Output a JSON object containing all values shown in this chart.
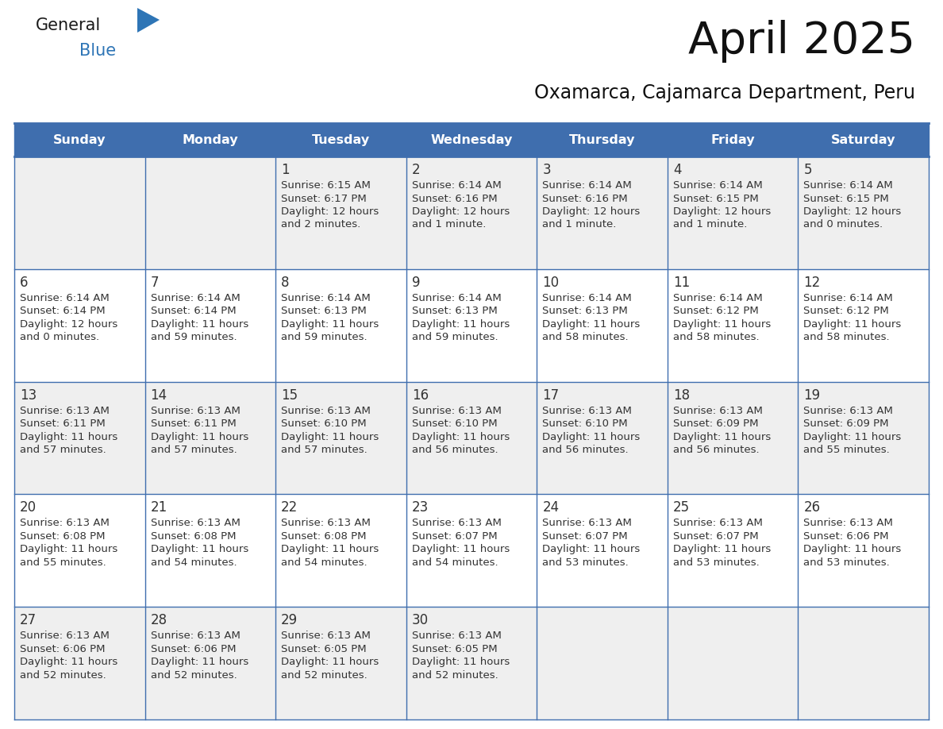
{
  "title": "April 2025",
  "subtitle": "Oxamarca, Cajamarca Department, Peru",
  "days_of_week": [
    "Sunday",
    "Monday",
    "Tuesday",
    "Wednesday",
    "Thursday",
    "Friday",
    "Saturday"
  ],
  "header_bg": "#3F6EAE",
  "header_text_color": "#FFFFFF",
  "row1_bg": "#EFEFEF",
  "row_bg": "#FFFFFF",
  "row_alt_bg": "#EFEFEF",
  "cell_border_color": "#3F6EAE",
  "text_color": "#333333",
  "logo_general_color": "#1A1A1A",
  "logo_blue_color": "#2E75B6",
  "logo_triangle_color": "#2E75B6",
  "calendar_data": [
    [
      {
        "day": null,
        "info": null
      },
      {
        "day": null,
        "info": null
      },
      {
        "day": 1,
        "info": "Sunrise: 6:15 AM\nSunset: 6:17 PM\nDaylight: 12 hours\nand 2 minutes."
      },
      {
        "day": 2,
        "info": "Sunrise: 6:14 AM\nSunset: 6:16 PM\nDaylight: 12 hours\nand 1 minute."
      },
      {
        "day": 3,
        "info": "Sunrise: 6:14 AM\nSunset: 6:16 PM\nDaylight: 12 hours\nand 1 minute."
      },
      {
        "day": 4,
        "info": "Sunrise: 6:14 AM\nSunset: 6:15 PM\nDaylight: 12 hours\nand 1 minute."
      },
      {
        "day": 5,
        "info": "Sunrise: 6:14 AM\nSunset: 6:15 PM\nDaylight: 12 hours\nand 0 minutes."
      }
    ],
    [
      {
        "day": 6,
        "info": "Sunrise: 6:14 AM\nSunset: 6:14 PM\nDaylight: 12 hours\nand 0 minutes."
      },
      {
        "day": 7,
        "info": "Sunrise: 6:14 AM\nSunset: 6:14 PM\nDaylight: 11 hours\nand 59 minutes."
      },
      {
        "day": 8,
        "info": "Sunrise: 6:14 AM\nSunset: 6:13 PM\nDaylight: 11 hours\nand 59 minutes."
      },
      {
        "day": 9,
        "info": "Sunrise: 6:14 AM\nSunset: 6:13 PM\nDaylight: 11 hours\nand 59 minutes."
      },
      {
        "day": 10,
        "info": "Sunrise: 6:14 AM\nSunset: 6:13 PM\nDaylight: 11 hours\nand 58 minutes."
      },
      {
        "day": 11,
        "info": "Sunrise: 6:14 AM\nSunset: 6:12 PM\nDaylight: 11 hours\nand 58 minutes."
      },
      {
        "day": 12,
        "info": "Sunrise: 6:14 AM\nSunset: 6:12 PM\nDaylight: 11 hours\nand 58 minutes."
      }
    ],
    [
      {
        "day": 13,
        "info": "Sunrise: 6:13 AM\nSunset: 6:11 PM\nDaylight: 11 hours\nand 57 minutes."
      },
      {
        "day": 14,
        "info": "Sunrise: 6:13 AM\nSunset: 6:11 PM\nDaylight: 11 hours\nand 57 minutes."
      },
      {
        "day": 15,
        "info": "Sunrise: 6:13 AM\nSunset: 6:10 PM\nDaylight: 11 hours\nand 57 minutes."
      },
      {
        "day": 16,
        "info": "Sunrise: 6:13 AM\nSunset: 6:10 PM\nDaylight: 11 hours\nand 56 minutes."
      },
      {
        "day": 17,
        "info": "Sunrise: 6:13 AM\nSunset: 6:10 PM\nDaylight: 11 hours\nand 56 minutes."
      },
      {
        "day": 18,
        "info": "Sunrise: 6:13 AM\nSunset: 6:09 PM\nDaylight: 11 hours\nand 56 minutes."
      },
      {
        "day": 19,
        "info": "Sunrise: 6:13 AM\nSunset: 6:09 PM\nDaylight: 11 hours\nand 55 minutes."
      }
    ],
    [
      {
        "day": 20,
        "info": "Sunrise: 6:13 AM\nSunset: 6:08 PM\nDaylight: 11 hours\nand 55 minutes."
      },
      {
        "day": 21,
        "info": "Sunrise: 6:13 AM\nSunset: 6:08 PM\nDaylight: 11 hours\nand 54 minutes."
      },
      {
        "day": 22,
        "info": "Sunrise: 6:13 AM\nSunset: 6:08 PM\nDaylight: 11 hours\nand 54 minutes."
      },
      {
        "day": 23,
        "info": "Sunrise: 6:13 AM\nSunset: 6:07 PM\nDaylight: 11 hours\nand 54 minutes."
      },
      {
        "day": 24,
        "info": "Sunrise: 6:13 AM\nSunset: 6:07 PM\nDaylight: 11 hours\nand 53 minutes."
      },
      {
        "day": 25,
        "info": "Sunrise: 6:13 AM\nSunset: 6:07 PM\nDaylight: 11 hours\nand 53 minutes."
      },
      {
        "day": 26,
        "info": "Sunrise: 6:13 AM\nSunset: 6:06 PM\nDaylight: 11 hours\nand 53 minutes."
      }
    ],
    [
      {
        "day": 27,
        "info": "Sunrise: 6:13 AM\nSunset: 6:06 PM\nDaylight: 11 hours\nand 52 minutes."
      },
      {
        "day": 28,
        "info": "Sunrise: 6:13 AM\nSunset: 6:06 PM\nDaylight: 11 hours\nand 52 minutes."
      },
      {
        "day": 29,
        "info": "Sunrise: 6:13 AM\nSunset: 6:05 PM\nDaylight: 11 hours\nand 52 minutes."
      },
      {
        "day": 30,
        "info": "Sunrise: 6:13 AM\nSunset: 6:05 PM\nDaylight: 11 hours\nand 52 minutes."
      },
      {
        "day": null,
        "info": null
      },
      {
        "day": null,
        "info": null
      },
      {
        "day": null,
        "info": null
      }
    ]
  ],
  "row_heights_ratio": [
    1.0,
    1.0,
    1.0,
    1.0,
    1.0
  ]
}
